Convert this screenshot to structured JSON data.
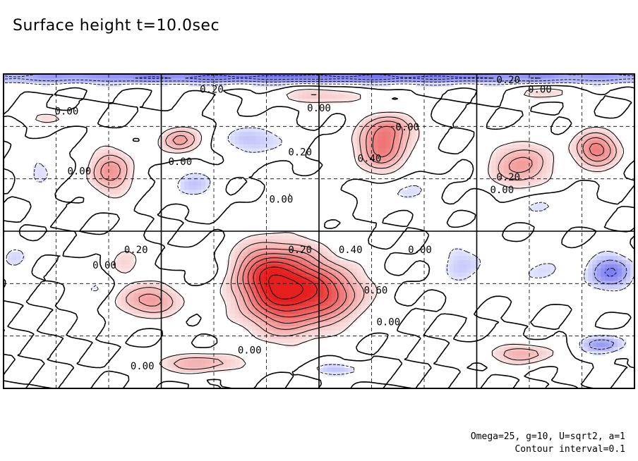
{
  "title": "Surface height t=10.0sec",
  "notes": {
    "params": "Omega=25, g=10, U=sqrt2, a=1",
    "contour": "Contour interval=0.1"
  },
  "chart_data": {
    "type": "heatmap",
    "title": "Surface height t=10.0sec",
    "xlabel": "",
    "ylabel": "",
    "contour_interval": 0.1,
    "colors": {
      "positive": "#e03030",
      "negative": "#3040e0",
      "zero": "#ffffff"
    },
    "grid": true,
    "grid_major": {
      "cols": 4,
      "rows": 2
    },
    "grid_minor": {
      "cols": 12,
      "rows": 6
    },
    "contour_labels": [
      {
        "text": "0.20",
        "x": 0.33,
        "y": 0.05
      },
      {
        "text": "0.00",
        "x": 0.1,
        "y": 0.12
      },
      {
        "text": "0.00",
        "x": 0.5,
        "y": 0.11
      },
      {
        "text": "0.20",
        "x": 0.47,
        "y": 0.25
      },
      {
        "text": "0.00",
        "x": 0.64,
        "y": 0.17
      },
      {
        "text": "0.20",
        "x": 0.8,
        "y": 0.02
      },
      {
        "text": "0.00",
        "x": 0.85,
        "y": 0.05
      },
      {
        "text": "0.00",
        "x": 0.12,
        "y": 0.31
      },
      {
        "text": "0.00",
        "x": 0.28,
        "y": 0.28
      },
      {
        "text": "0.00",
        "x": 0.44,
        "y": 0.4
      },
      {
        "text": "0.00",
        "x": 0.79,
        "y": 0.37
      },
      {
        "text": "0.20",
        "x": 0.8,
        "y": 0.33
      },
      {
        "text": "0.20",
        "x": 0.21,
        "y": 0.56
      },
      {
        "text": "0.00",
        "x": 0.16,
        "y": 0.61
      },
      {
        "text": "0.20",
        "x": 0.47,
        "y": 0.56
      },
      {
        "text": "0.40",
        "x": 0.55,
        "y": 0.56
      },
      {
        "text": "0.60",
        "x": 0.59,
        "y": 0.69
      },
      {
        "text": "0.00",
        "x": 0.61,
        "y": 0.79
      },
      {
        "text": "0.00",
        "x": 0.39,
        "y": 0.88
      },
      {
        "text": "0.00",
        "x": 0.22,
        "y": 0.93
      },
      {
        "text": "0.40",
        "x": 0.58,
        "y": 0.27
      },
      {
        "text": "0.00",
        "x": 0.66,
        "y": 0.56
      }
    ],
    "features": [
      {
        "kind": "max",
        "x": 0.45,
        "y": 0.69,
        "amp": 0.78,
        "rx": 0.07,
        "ry": 0.12
      },
      {
        "kind": "max",
        "x": 0.41,
        "y": 0.62,
        "amp": 0.25,
        "rx": 0.05,
        "ry": 0.08
      },
      {
        "kind": "max",
        "x": 0.53,
        "y": 0.7,
        "amp": 0.3,
        "rx": 0.05,
        "ry": 0.08
      },
      {
        "kind": "max",
        "x": 0.505,
        "y": 0.07,
        "amp": 0.22,
        "rx": 0.06,
        "ry": 0.025
      },
      {
        "kind": "max",
        "x": 0.6,
        "y": 0.23,
        "amp": 0.45,
        "rx": 0.04,
        "ry": 0.08
      },
      {
        "kind": "max",
        "x": 0.62,
        "y": 0.17,
        "amp": 0.2,
        "rx": 0.035,
        "ry": 0.04
      },
      {
        "kind": "max",
        "x": 0.82,
        "y": 0.29,
        "amp": 0.35,
        "rx": 0.045,
        "ry": 0.07
      },
      {
        "kind": "max",
        "x": 0.94,
        "y": 0.24,
        "amp": 0.45,
        "rx": 0.035,
        "ry": 0.055
      },
      {
        "kind": "max",
        "x": 0.86,
        "y": 0.06,
        "amp": 0.18,
        "rx": 0.04,
        "ry": 0.02
      },
      {
        "kind": "max",
        "x": 0.17,
        "y": 0.31,
        "amp": 0.35,
        "rx": 0.035,
        "ry": 0.07
      },
      {
        "kind": "max",
        "x": 0.28,
        "y": 0.21,
        "amp": 0.35,
        "rx": 0.03,
        "ry": 0.04
      },
      {
        "kind": "max",
        "x": 0.07,
        "y": 0.14,
        "amp": 0.16,
        "rx": 0.03,
        "ry": 0.02
      },
      {
        "kind": "max",
        "x": 0.23,
        "y": 0.72,
        "amp": 0.35,
        "rx": 0.05,
        "ry": 0.05
      },
      {
        "kind": "max",
        "x": 0.19,
        "y": 0.6,
        "amp": 0.16,
        "rx": 0.025,
        "ry": 0.06
      },
      {
        "kind": "max",
        "x": 0.31,
        "y": 0.92,
        "amp": 0.28,
        "rx": 0.07,
        "ry": 0.03
      },
      {
        "kind": "max",
        "x": 0.82,
        "y": 0.89,
        "amp": 0.28,
        "rx": 0.05,
        "ry": 0.03
      },
      {
        "kind": "max",
        "x": 0.46,
        "y": 0.39,
        "amp": 0.08,
        "rx": 0.04,
        "ry": 0.06
      },
      {
        "kind": "min",
        "x": 0.5,
        "y": 0.01,
        "amp": -0.35,
        "rx": 0.8,
        "ry": 0.02
      },
      {
        "kind": "min",
        "x": 0.4,
        "y": 0.21,
        "amp": -0.18,
        "rx": 0.05,
        "ry": 0.05
      },
      {
        "kind": "min",
        "x": 0.3,
        "y": 0.35,
        "amp": -0.15,
        "rx": 0.04,
        "ry": 0.05
      },
      {
        "kind": "min",
        "x": 0.06,
        "y": 0.3,
        "amp": -0.12,
        "rx": 0.03,
        "ry": 0.07
      },
      {
        "kind": "min",
        "x": 0.96,
        "y": 0.63,
        "amp": -0.3,
        "rx": 0.04,
        "ry": 0.06
      },
      {
        "kind": "min",
        "x": 0.95,
        "y": 0.86,
        "amp": -0.25,
        "rx": 0.04,
        "ry": 0.03
      },
      {
        "kind": "min",
        "x": 0.73,
        "y": 0.6,
        "amp": -0.15,
        "rx": 0.04,
        "ry": 0.08
      },
      {
        "kind": "min",
        "x": 0.85,
        "y": 0.63,
        "amp": -0.12,
        "rx": 0.04,
        "ry": 0.06
      },
      {
        "kind": "min",
        "x": 0.53,
        "y": 0.94,
        "amp": -0.2,
        "rx": 0.04,
        "ry": 0.02
      },
      {
        "kind": "min",
        "x": 0.15,
        "y": 0.68,
        "amp": -0.12,
        "rx": 0.03,
        "ry": 0.06
      },
      {
        "kind": "min",
        "x": 0.02,
        "y": 0.58,
        "amp": -0.12,
        "rx": 0.025,
        "ry": 0.05
      },
      {
        "kind": "min",
        "x": 0.63,
        "y": 0.37,
        "amp": -0.12,
        "rx": 0.05,
        "ry": 0.05
      },
      {
        "kind": "min",
        "x": 0.85,
        "y": 0.42,
        "amp": -0.1,
        "rx": 0.06,
        "ry": 0.04
      },
      {
        "kind": "min",
        "x": 0.33,
        "y": 0.62,
        "amp": -0.08,
        "rx": 0.03,
        "ry": 0.06
      }
    ]
  }
}
